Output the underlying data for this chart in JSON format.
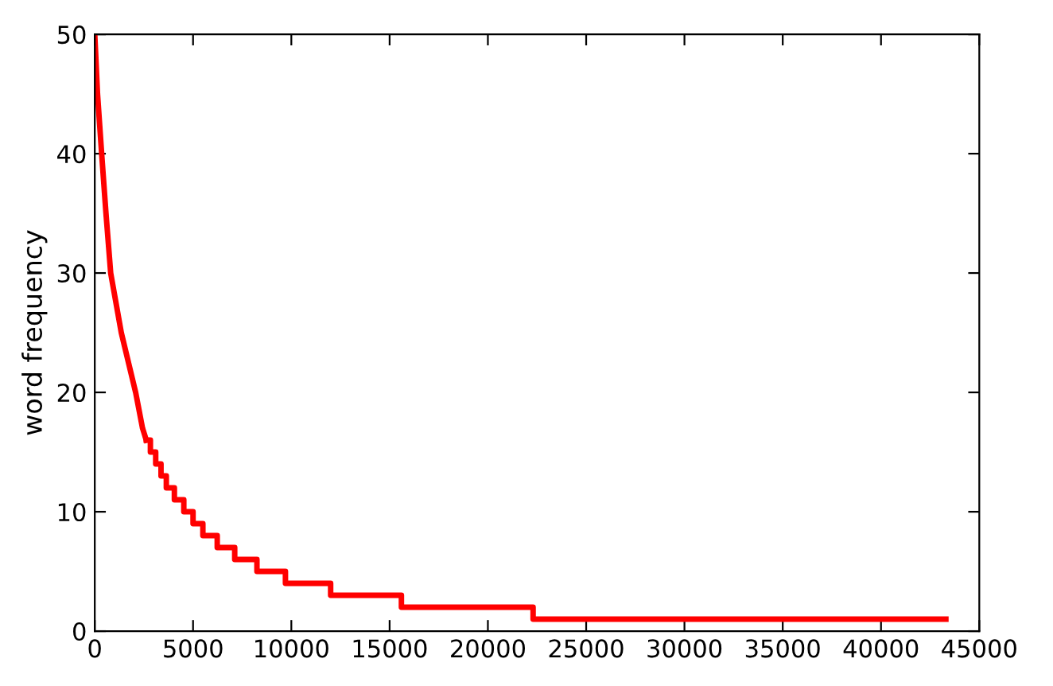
{
  "chart_data": {
    "type": "step",
    "ylabel": "word frequency",
    "xlim": [
      0,
      45000
    ],
    "xticks": [
      0,
      5000,
      10000,
      15000,
      20000,
      25000,
      30000,
      35000,
      40000,
      45000
    ],
    "ylim": [
      0,
      50
    ],
    "yticks": [
      0,
      10,
      20,
      30,
      40,
      50
    ],
    "grid": false,
    "legend": false,
    "series": [
      {
        "type": "line",
        "color": "#ff0000",
        "x": [
          0,
          140,
          350,
          570,
          810,
          1350,
          2080,
          2430,
          2620
        ],
        "values": [
          50,
          45,
          40,
          35,
          30,
          25,
          20,
          17,
          16
        ]
      },
      {
        "color": "#ff0000",
        "x": [
          2620,
          2830,
          3100,
          3370,
          3640,
          4050,
          4530,
          5000,
          5500,
          6230,
          7120,
          8250,
          9700,
          12000,
          15600,
          22300,
          43300
        ],
        "values": [
          16,
          15,
          14,
          13,
          12,
          11,
          10,
          9,
          8,
          7,
          6,
          5,
          4,
          3,
          2,
          1,
          1
        ]
      }
    ]
  }
}
